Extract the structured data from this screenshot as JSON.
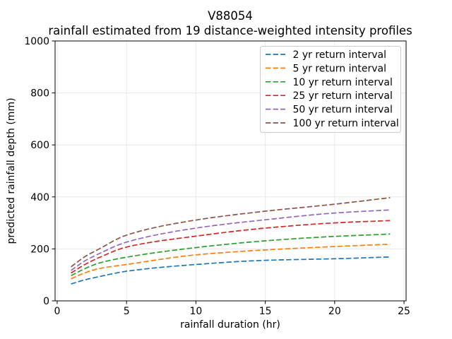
{
  "chart_data": {
    "type": "line",
    "title": "V88054",
    "subtitle": "rainfall estimated from 19 distance-weighted intensity profiles",
    "xlabel": "rainfall duration (hr)",
    "ylabel": "predicted rainfall depth (mm)",
    "xlim": [
      -0.15,
      25.15
    ],
    "ylim": [
      0,
      1000
    ],
    "xticks": [
      0,
      5,
      10,
      15,
      20,
      25
    ],
    "yticks": [
      0,
      200,
      400,
      600,
      800,
      1000
    ],
    "grid": true,
    "grid_color": "#e8e8e8",
    "legend_position": "upper right",
    "line_style": "dashed",
    "x": [
      1,
      2,
      3,
      5,
      10,
      15,
      20,
      24
    ],
    "series": [
      {
        "name": "2 yr return interval",
        "color": "#1f77b4",
        "values": [
          65,
          81,
          93,
          114,
          140,
          156,
          162,
          169
        ]
      },
      {
        "name": "5 yr return interval",
        "color": "#ff7f0e",
        "values": [
          85,
          108,
          124,
          140,
          177,
          196,
          209,
          218
        ]
      },
      {
        "name": "10 yr return interval",
        "color": "#2ca02c",
        "values": [
          97,
          124,
          145,
          168,
          205,
          231,
          248,
          257
        ]
      },
      {
        "name": "25 yr return interval",
        "color": "#d62728",
        "values": [
          107,
          140,
          166,
          207,
          249,
          280,
          300,
          309
        ]
      },
      {
        "name": "50 yr return interval",
        "color": "#9467bd",
        "values": [
          117,
          154,
          181,
          226,
          280,
          312,
          338,
          350
        ]
      },
      {
        "name": "100 yr return interval",
        "color": "#8c564b",
        "values": [
          131,
          170,
          199,
          253,
          311,
          345,
          372,
          397
        ]
      }
    ]
  }
}
